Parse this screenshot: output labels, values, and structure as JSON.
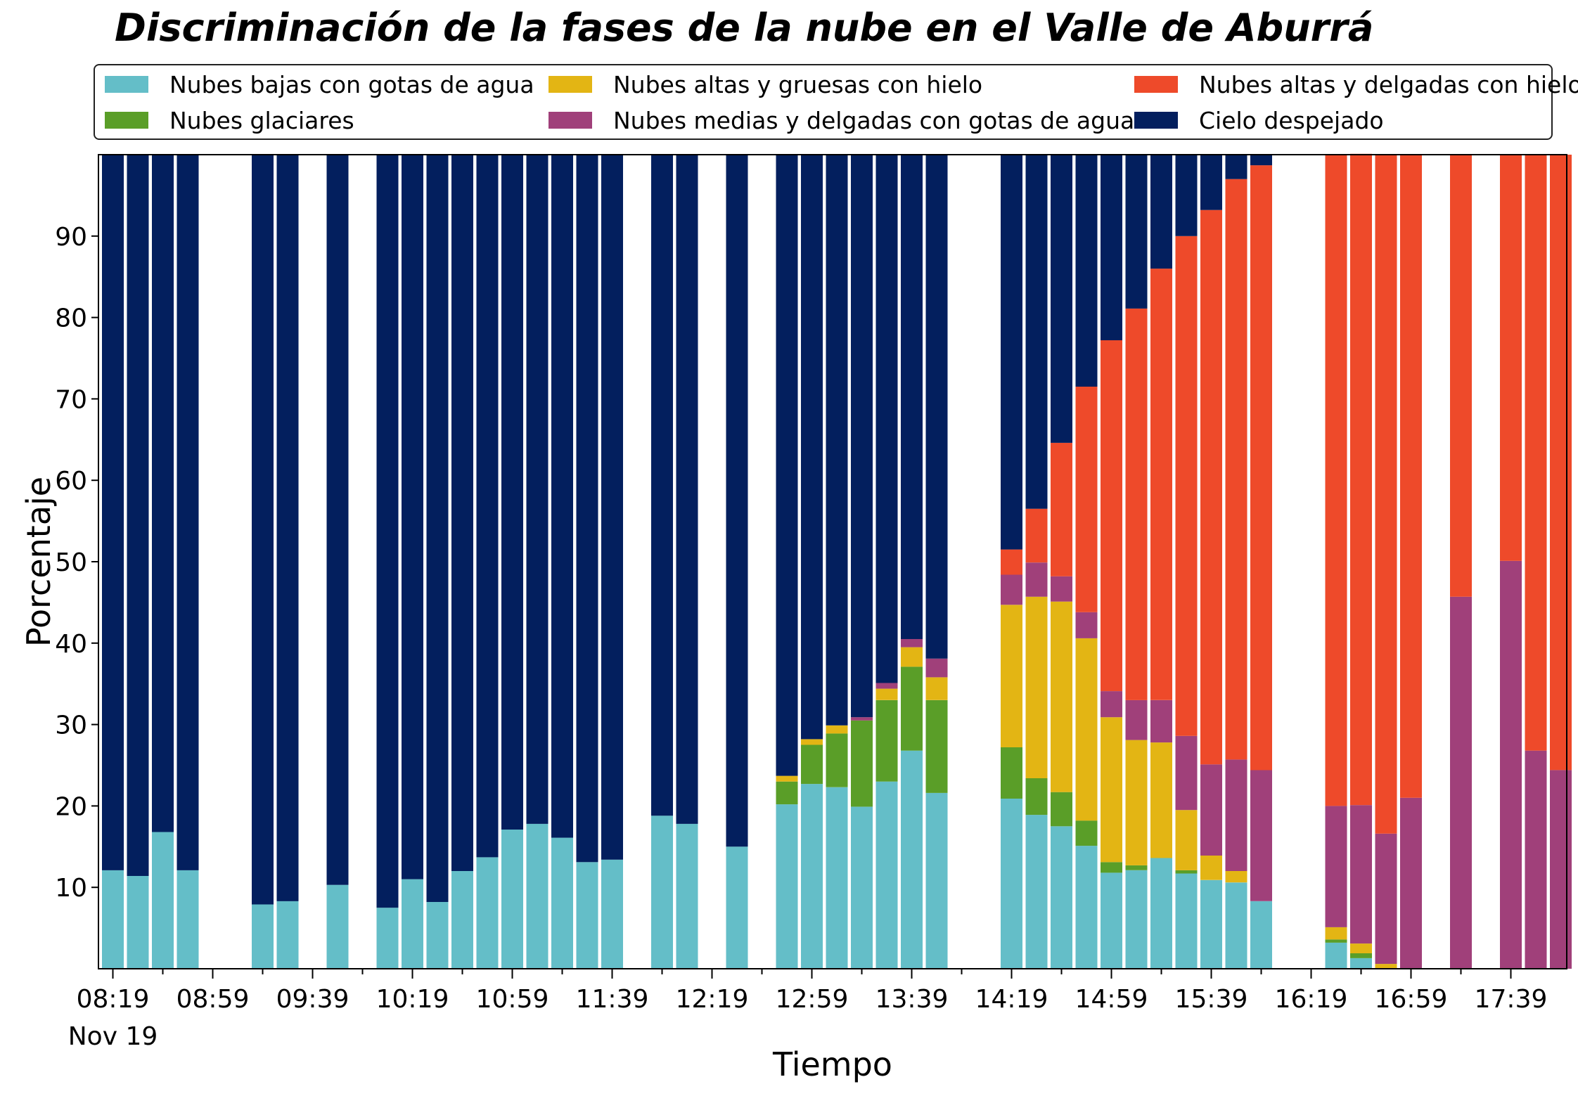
{
  "chart_data": {
    "type": "bar",
    "stacked": true,
    "title": "Discriminación de la fases de la nube en el Valle de Aburrá",
    "xlabel": "Tiempo",
    "ylabel": "Porcentaje",
    "ylim": [
      0,
      100
    ],
    "yticks": [
      10,
      20,
      30,
      40,
      50,
      60,
      70,
      80,
      90
    ],
    "x_tick_labels": [
      "08:19",
      "08:59",
      "09:39",
      "10:19",
      "10:59",
      "11:39",
      "12:19",
      "12:59",
      "13:39",
      "14:19",
      "14:59",
      "15:39",
      "16:19",
      "16:59",
      "17:39"
    ],
    "x_date_label": "Nov 19",
    "legend_position": "top",
    "grid": false,
    "x": [
      "08:19",
      "08:29",
      "08:39",
      "08:49",
      "09:19",
      "09:29",
      "09:49",
      "10:09",
      "10:19",
      "10:29",
      "10:39",
      "10:49",
      "10:59",
      "11:09",
      "11:19",
      "11:29",
      "11:39",
      "11:59",
      "12:09",
      "12:29",
      "12:49",
      "12:59",
      "13:09",
      "13:19",
      "13:29",
      "13:39",
      "13:49",
      "14:19",
      "14:29",
      "14:39",
      "14:49",
      "14:59",
      "15:09",
      "15:19",
      "15:29",
      "15:39",
      "15:49",
      "15:59",
      "16:29",
      "16:39",
      "16:49",
      "16:59",
      "17:19",
      "17:39",
      "17:49",
      "17:59"
    ],
    "series": [
      {
        "name": "Nubes bajas con gotas de agua",
        "color": "#64bec8",
        "values": [
          12.1,
          11.4,
          16.8,
          12.1,
          7.9,
          8.3,
          10.3,
          7.5,
          11.0,
          8.2,
          12.0,
          13.7,
          17.1,
          17.8,
          16.1,
          13.1,
          13.4,
          18.8,
          17.8,
          15.0,
          20.2,
          22.7,
          22.3,
          19.9,
          23.0,
          26.8,
          21.6,
          20.9,
          18.9,
          17.5,
          15.1,
          11.8,
          12.1,
          13.6,
          11.7,
          10.9,
          10.6,
          8.3,
          3.2,
          1.3,
          0,
          0,
          0,
          0,
          0,
          0
        ]
      },
      {
        "name": "Nubes glaciares",
        "color": "#5a9e28",
        "values": [
          0,
          0,
          0,
          0,
          0,
          0,
          0,
          0,
          0,
          0,
          0,
          0,
          0,
          0,
          0,
          0,
          0,
          0,
          0,
          0,
          2.8,
          4.8,
          6.6,
          10.6,
          10.0,
          10.3,
          11.4,
          6.3,
          4.5,
          4.2,
          3.1,
          1.3,
          0.6,
          0,
          0.4,
          0,
          0,
          0,
          0.4,
          0.6,
          0,
          0,
          0,
          0,
          0,
          0
        ]
      },
      {
        "name": "Nubes altas y gruesas con hielo",
        "color": "#e3b514",
        "values": [
          0,
          0,
          0,
          0,
          0,
          0,
          0,
          0,
          0,
          0,
          0,
          0,
          0,
          0,
          0,
          0,
          0,
          0,
          0,
          0,
          0.7,
          0.7,
          1.0,
          0,
          1.4,
          2.4,
          2.8,
          17.5,
          22.3,
          23.4,
          22.4,
          17.8,
          15.4,
          14.2,
          7.4,
          3.0,
          1.4,
          0,
          1.5,
          1.2,
          0.6,
          0,
          0,
          0,
          0,
          0
        ]
      },
      {
        "name": "Nubes medias y delgadas con gotas de agua",
        "color": "#a0407a",
        "values": [
          0,
          0,
          0,
          0,
          0,
          0,
          0,
          0,
          0,
          0,
          0,
          0,
          0,
          0,
          0,
          0,
          0,
          0,
          0,
          0,
          0,
          0,
          0,
          0.4,
          0.7,
          1.0,
          2.3,
          3.7,
          4.2,
          3.1,
          3.2,
          3.2,
          4.9,
          5.2,
          9.1,
          11.2,
          13.7,
          16.1,
          14.9,
          17.0,
          16.0,
          21.0,
          45.7,
          50.1,
          26.8,
          24.4
        ]
      },
      {
        "name": "Nubes altas y delgadas con hielo",
        "color": "#ee4a2a",
        "values": [
          0,
          0,
          0,
          0,
          0,
          0,
          0,
          0,
          0,
          0,
          0,
          0,
          0,
          0,
          0,
          0,
          0,
          0,
          0,
          0,
          0,
          0,
          0,
          0,
          0,
          0,
          0,
          3.1,
          6.6,
          16.4,
          27.7,
          43.1,
          48.1,
          53.0,
          61.4,
          68.1,
          71.3,
          74.3,
          80.0,
          80.0,
          83.4,
          79.0,
          54.3,
          49.9,
          73.2,
          75.6
        ]
      },
      {
        "name": "Cielo despejado",
        "color": "#031f5e",
        "values": [
          87.9,
          88.6,
          83.2,
          87.9,
          92.1,
          91.7,
          89.7,
          92.5,
          89.0,
          91.8,
          88.0,
          86.3,
          82.9,
          82.2,
          83.9,
          86.9,
          86.6,
          81.2,
          82.2,
          85.0,
          76.3,
          71.8,
          70.1,
          69.1,
          64.9,
          59.5,
          61.9,
          48.5,
          43.5,
          35.4,
          28.5,
          22.8,
          18.9,
          14.0,
          10.0,
          6.8,
          3.0,
          1.3,
          0,
          0,
          0,
          0,
          0,
          0,
          0,
          0
        ]
      }
    ]
  }
}
